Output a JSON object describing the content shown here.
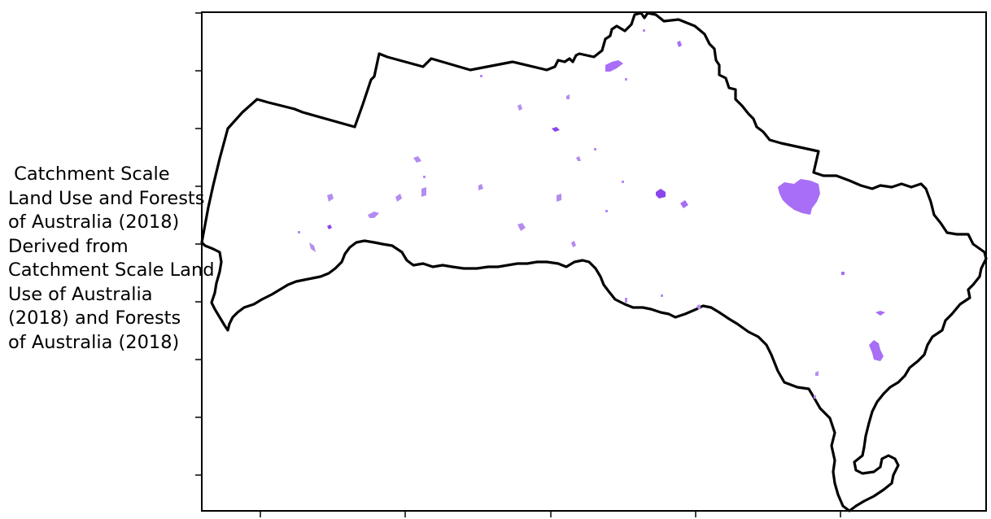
{
  "map": {
    "legend_text": " Catchment Scale\nLand Use and Forests\nof Australia (2018)\nDerived from\nCatchment Scale Land\nUse of Australia\n(2018) and Forests\nof Australia (2018)",
    "colors": {
      "boundary": "#000000",
      "forest_patch": "#a86ef5",
      "forest_patch_dark": "#8a45ec",
      "forest_patch_light": "#b48cf0",
      "frame": "#000000"
    },
    "axes": {
      "x_ticks_count": 5,
      "y_ticks_count": 9,
      "tick_labels_visible": false
    }
  }
}
